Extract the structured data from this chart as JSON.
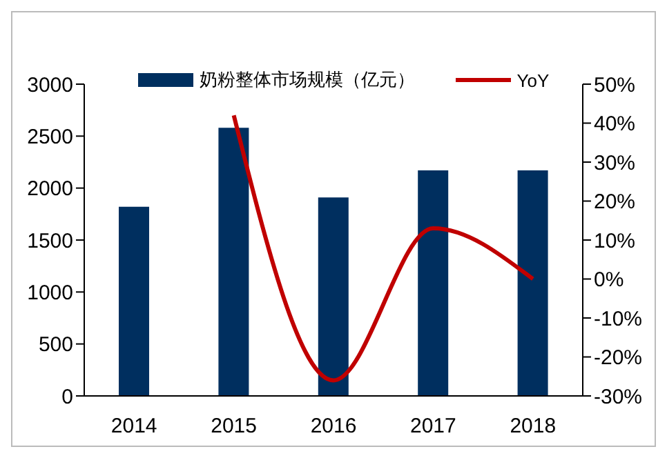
{
  "chart_data": {
    "type": "bar",
    "categories": [
      "2014",
      "2015",
      "2016",
      "2017",
      "2018"
    ],
    "series": [
      {
        "name": "奶粉整体市场规模（亿元）",
        "color": "#002f5f",
        "values": [
          1820,
          2580,
          1910,
          2170,
          2170
        ]
      },
      {
        "name": "YoY",
        "type": "line",
        "axis": "y2",
        "color": "#c00000",
        "values": [
          null,
          42,
          -26,
          13,
          0
        ]
      }
    ],
    "ylim": [
      0,
      3000
    ],
    "yticks": [
      0,
      500,
      1000,
      1500,
      2000,
      2500,
      3000
    ],
    "y2lim": [
      -30,
      50
    ],
    "y2ticks": [
      {
        "value": -30,
        "label": "-30%"
      },
      {
        "value": -20,
        "label": "-20%"
      },
      {
        "value": -10,
        "label": "-10%"
      },
      {
        "value": 0,
        "label": "0%"
      },
      {
        "value": 10,
        "label": "10%"
      },
      {
        "value": 20,
        "label": "20%"
      },
      {
        "value": 30,
        "label": "30%"
      },
      {
        "value": 40,
        "label": "40%"
      },
      {
        "value": 50,
        "label": "50%"
      }
    ],
    "grid": false,
    "legend": "top",
    "marker": "none",
    "line_style": "solid"
  }
}
